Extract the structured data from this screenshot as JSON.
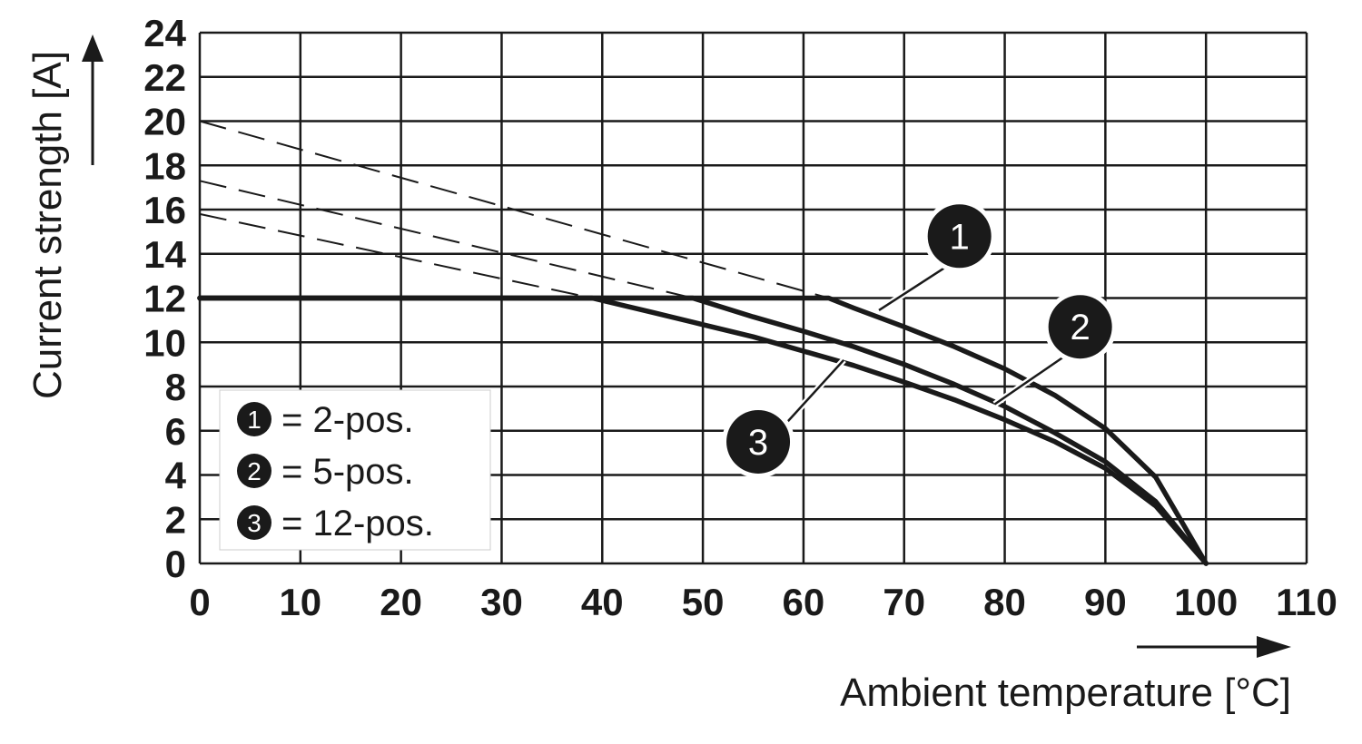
{
  "chart_data": {
    "type": "line",
    "title": "",
    "xlabel": "Ambient temperature [°C]",
    "ylabel": "Current strength [A]",
    "xlim": [
      0,
      110
    ],
    "ylim": [
      0,
      24
    ],
    "xticks": [
      0,
      10,
      20,
      30,
      40,
      50,
      60,
      70,
      80,
      90,
      100,
      110
    ],
    "yticks": [
      0,
      2,
      4,
      6,
      8,
      10,
      12,
      14,
      16,
      18,
      20,
      22,
      24
    ],
    "grid": true,
    "legend_position": "bottom-left",
    "colors": {
      "line": "#1a1a1a",
      "grid": "#1a1a1a",
      "badge": "#1a1a1a"
    },
    "series": [
      {
        "id": "1",
        "label": "= 2-pos.",
        "points": [
          [
            0,
            12
          ],
          [
            62.5,
            12
          ],
          [
            65,
            11.55
          ],
          [
            70,
            10.7
          ],
          [
            75,
            9.8
          ],
          [
            80,
            8.8
          ],
          [
            85,
            7.6
          ],
          [
            90,
            6.1
          ],
          [
            95,
            3.9
          ],
          [
            100,
            0
          ]
        ],
        "extension": [
          [
            0,
            20
          ],
          [
            62.5,
            12
          ]
        ]
      },
      {
        "id": "2",
        "label": "= 5-pos.",
        "points": [
          [
            0,
            12
          ],
          [
            49,
            12
          ],
          [
            55,
            11.15
          ],
          [
            60,
            10.5
          ],
          [
            65,
            9.8
          ],
          [
            70,
            9.0
          ],
          [
            75,
            8.1
          ],
          [
            80,
            7.1
          ],
          [
            85,
            5.9
          ],
          [
            90,
            4.6
          ],
          [
            95,
            2.8
          ],
          [
            100,
            0
          ]
        ],
        "extension": [
          [
            0,
            17.3
          ],
          [
            49,
            12
          ]
        ]
      },
      {
        "id": "3",
        "label": "= 12-pos.",
        "points": [
          [
            0,
            12
          ],
          [
            39,
            12
          ],
          [
            45,
            11.35
          ],
          [
            50,
            10.8
          ],
          [
            55,
            10.25
          ],
          [
            60,
            9.6
          ],
          [
            65,
            8.95
          ],
          [
            70,
            8.2
          ],
          [
            75,
            7.4
          ],
          [
            80,
            6.5
          ],
          [
            85,
            5.5
          ],
          [
            90,
            4.3
          ],
          [
            95,
            2.6
          ],
          [
            100,
            0
          ]
        ],
        "extension": [
          [
            0,
            15.8
          ],
          [
            39,
            12
          ]
        ]
      }
    ],
    "callouts": [
      {
        "id": "1",
        "leader": [
          [
            67.5,
            11.45
          ],
          [
            75.5,
            13.8
          ]
        ],
        "badge": [
          75.5,
          14.8
        ]
      },
      {
        "id": "2",
        "leader": [
          [
            79,
            7.2
          ],
          [
            87,
            9.7
          ]
        ],
        "badge": [
          87.5,
          10.7
        ]
      },
      {
        "id": "3",
        "leader": [
          [
            64,
            9.2
          ],
          [
            58,
            6.2
          ]
        ],
        "badge": [
          55.5,
          5.5
        ]
      }
    ]
  }
}
